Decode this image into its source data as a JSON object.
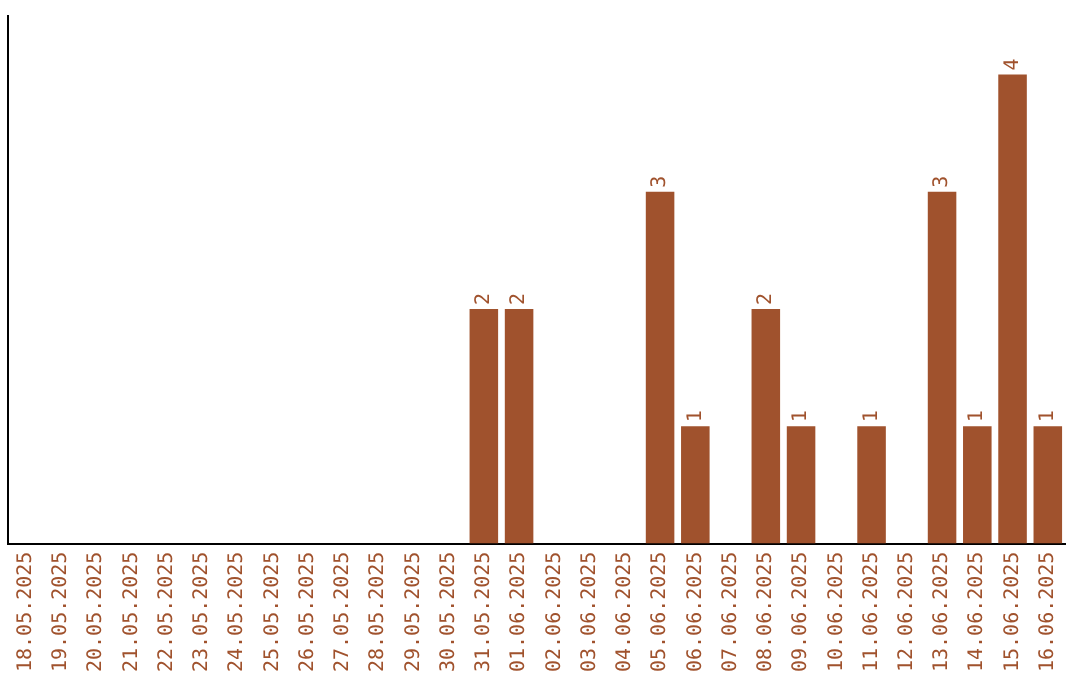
{
  "chart_data": {
    "type": "bar",
    "categories": [
      "18.05.2025",
      "19.05.2025",
      "20.05.2025",
      "21.05.2025",
      "22.05.2025",
      "23.05.2025",
      "24.05.2025",
      "25.05.2025",
      "26.05.2025",
      "27.05.2025",
      "28.05.2025",
      "29.05.2025",
      "30.05.2025",
      "31.05.2025",
      "01.06.2025",
      "02.06.2025",
      "03.06.2025",
      "04.06.2025",
      "05.06.2025",
      "06.06.2025",
      "07.06.2025",
      "08.06.2025",
      "09.06.2025",
      "10.06.2025",
      "11.06.2025",
      "12.06.2025",
      "13.06.2025",
      "14.06.2025",
      "15.06.2025",
      "16.06.2025"
    ],
    "values": [
      null,
      null,
      null,
      null,
      null,
      null,
      null,
      null,
      null,
      null,
      null,
      null,
      null,
      2,
      2,
      null,
      null,
      null,
      3,
      1,
      null,
      2,
      1,
      null,
      1,
      null,
      3,
      1,
      4,
      1
    ],
    "value_labels": [
      null,
      null,
      null,
      null,
      null,
      null,
      null,
      null,
      null,
      null,
      null,
      null,
      null,
      "2",
      "2",
      null,
      null,
      null,
      "3",
      "1",
      null,
      "2",
      "1",
      null,
      "1",
      null,
      "3",
      "1",
      "4",
      "1"
    ],
    "color": "#a0522d",
    "grid": false,
    "legend": false
  }
}
